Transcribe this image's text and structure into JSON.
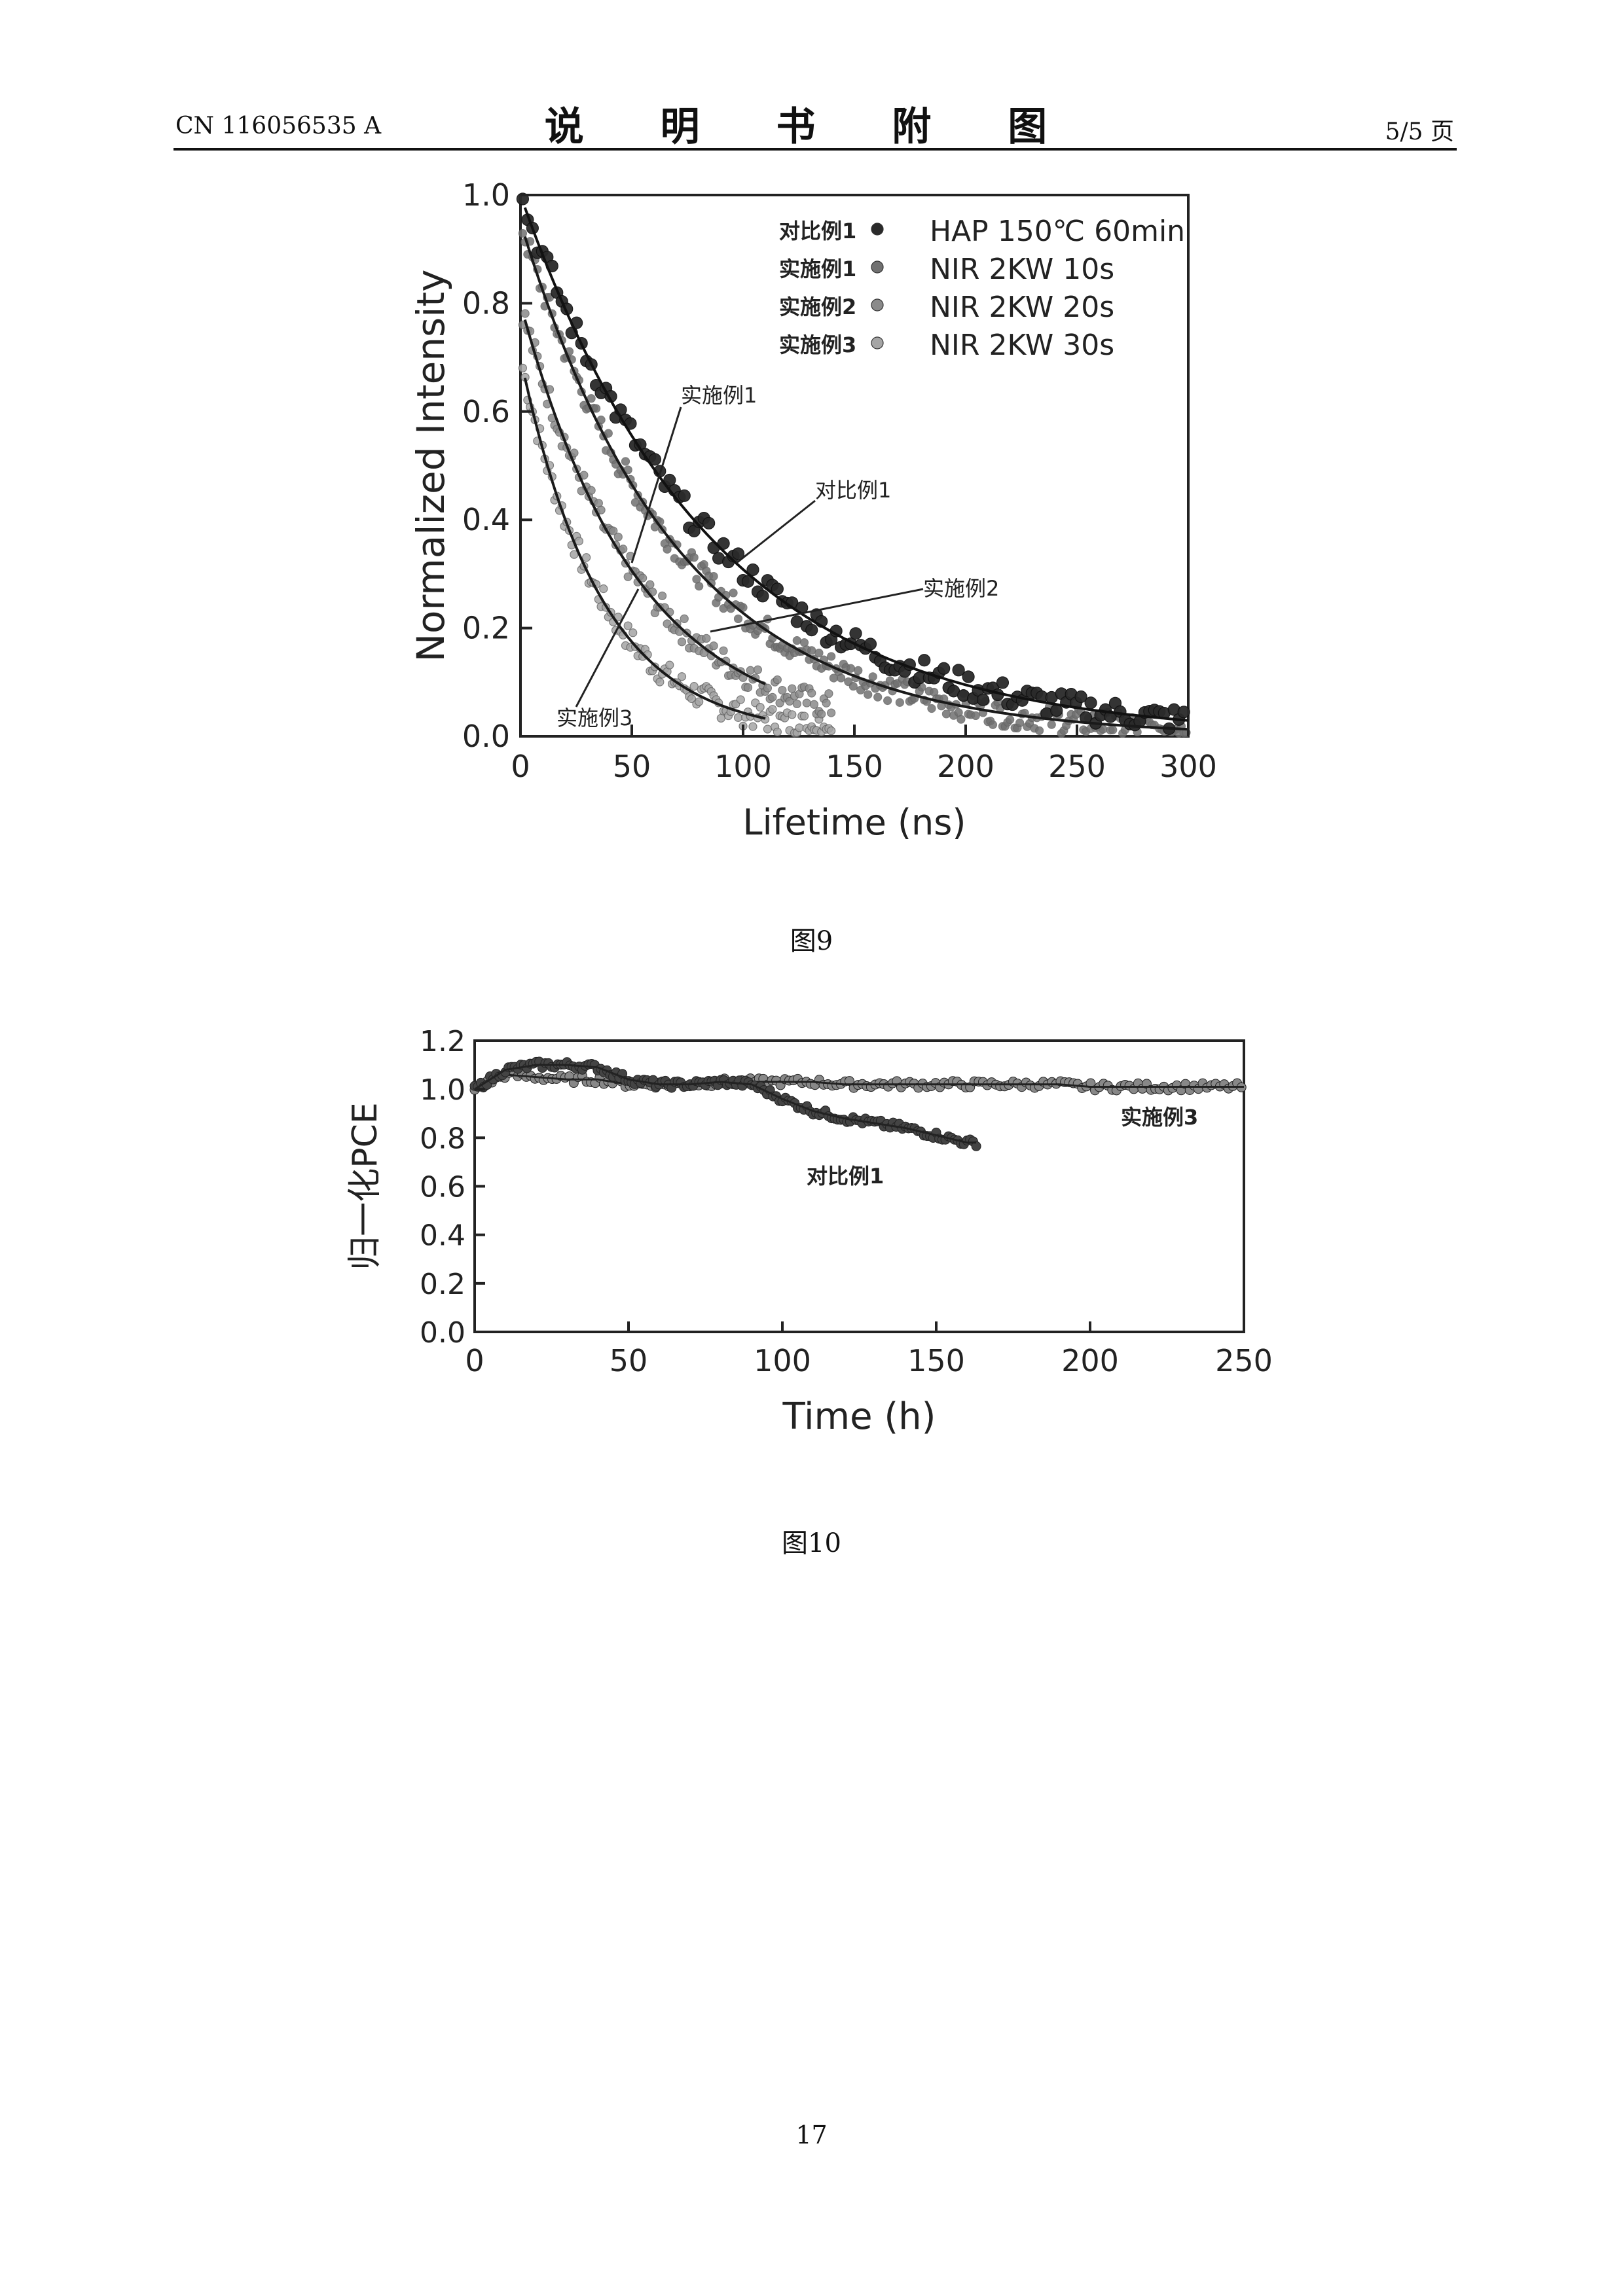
{
  "header": {
    "doc_id": "CN 116056535 A",
    "title": "说 明 书 附 图",
    "page_count": "5/5 页"
  },
  "figure9": {
    "caption": "图9",
    "annotations": [
      "实施例1",
      "对比例1",
      "实施例2",
      "实施例3"
    ]
  },
  "figure10": {
    "caption": "图10",
    "annotations": [
      "实施例3",
      "对比例1"
    ]
  },
  "footer": {
    "page_number": "17"
  },
  "chart_data": [
    {
      "type": "scatter",
      "xlabel": "Lifetime (ns)",
      "ylabel": "Normalized Intensity",
      "xlim": [
        0,
        300
      ],
      "ylim": [
        0.0,
        1.0
      ],
      "xticks": [
        0,
        50,
        100,
        150,
        200,
        250,
        300
      ],
      "yticks": [
        0.0,
        0.2,
        0.4,
        0.6,
        0.8,
        1.0
      ],
      "legend_position": "top-right",
      "series": [
        {
          "name": "对比例1",
          "condition": "HAP 150℃ 60min",
          "tau": 85,
          "amp": 1.0,
          "color": "#2a2a2a",
          "fit_end": 300
        },
        {
          "name": "实施例1",
          "condition": "NIR 2KW 10s",
          "tau": 70,
          "amp": 0.95,
          "color": "#707070",
          "fit_end": 300
        },
        {
          "name": "实施例2",
          "condition": "NIR 2KW 20s",
          "tau": 52,
          "amp": 0.8,
          "color": "#8a8a8a",
          "fit_end": 110
        },
        {
          "name": "实施例3",
          "condition": "NIR 2KW 30s",
          "tau": 36,
          "amp": 0.7,
          "color": "#a5a5a5",
          "fit_end": 110
        }
      ]
    },
    {
      "type": "line",
      "xlabel": "Time (h)",
      "ylabel": "归一化PCE",
      "xlim": [
        0,
        250
      ],
      "ylim": [
        0.0,
        1.2
      ],
      "xticks": [
        0,
        50,
        100,
        150,
        200,
        250
      ],
      "yticks": [
        0.0,
        0.2,
        0.4,
        0.6,
        0.8,
        1.0,
        1.2
      ],
      "series": [
        {
          "name": "实施例3",
          "x": [
            0,
            10,
            20,
            30,
            40,
            50,
            60,
            70,
            80,
            90,
            100,
            110,
            120,
            130,
            140,
            150,
            160,
            170,
            180,
            190,
            200,
            210,
            220,
            230,
            240,
            250
          ],
          "y": [
            1.0,
            1.06,
            1.05,
            1.04,
            1.04,
            1.02,
            1.02,
            1.02,
            1.03,
            1.03,
            1.03,
            1.03,
            1.02,
            1.02,
            1.02,
            1.02,
            1.02,
            1.02,
            1.02,
            1.02,
            1.01,
            1.01,
            1.01,
            1.01,
            1.01,
            1.01
          ]
        },
        {
          "name": "对比例1",
          "x": [
            0,
            10,
            20,
            30,
            40,
            50,
            60,
            70,
            80,
            90,
            95,
            100,
            110,
            120,
            130,
            140,
            150,
            160,
            163
          ],
          "y": [
            1.0,
            1.08,
            1.1,
            1.1,
            1.09,
            1.04,
            1.02,
            1.02,
            1.03,
            1.02,
            0.99,
            0.96,
            0.91,
            0.88,
            0.86,
            0.84,
            0.81,
            0.78,
            0.78
          ]
        }
      ]
    }
  ]
}
